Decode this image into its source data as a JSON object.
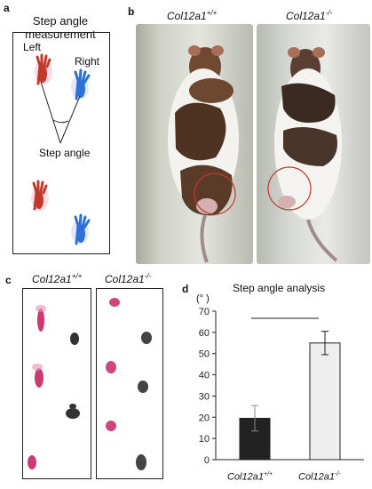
{
  "panel_a": {
    "letter": "a",
    "title_line1": "Step angle",
    "title_line2": "measurement",
    "left_label": "Left",
    "right_label": "Right",
    "angle_label": "Step angle"
  },
  "panel_b": {
    "letter": "b",
    "wt_label": "Col12a1",
    "wt_sup": "+/+",
    "ko_label": "Col12a1",
    "ko_sup": "-/-"
  },
  "panel_c": {
    "letter": "c",
    "wt_label": "Col12a1",
    "wt_sup": "+/+",
    "ko_label": "Col12a1",
    "ko_sup": "-/-"
  },
  "panel_d": {
    "letter": "d",
    "title": "Step angle analysis",
    "unit": "(°  )",
    "x1_label": "Col12a1",
    "x1_sup": "+/+",
    "x2_label": "Col12a1",
    "x2_sup": "-/-"
  },
  "colors": {
    "left_paw": "#c0392b",
    "right_paw": "#2e6fd8",
    "wt_bar": "#222222",
    "ko_bar": "#eeeeee",
    "ink_red": "#c2185b",
    "ink_black": "#333333",
    "circle": "#c0392b"
  },
  "chart_data": {
    "type": "bar",
    "title": "Step angle analysis",
    "categories": [
      "Col12a1+/+",
      "Col12a1-/-"
    ],
    "values": [
      19.5,
      55
    ],
    "errors": [
      6,
      5.5
    ],
    "ylim": [
      0,
      70
    ],
    "yticks": [
      0,
      10,
      20,
      30,
      40,
      50,
      60,
      70
    ],
    "significance_bar": true
  }
}
